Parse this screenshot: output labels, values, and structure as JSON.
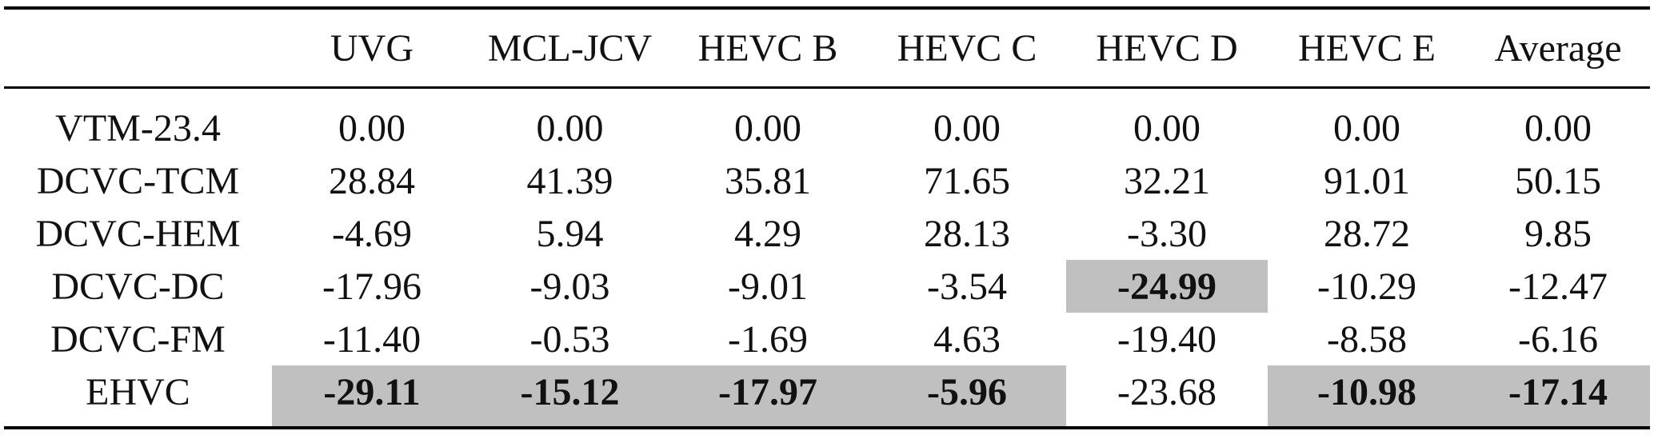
{
  "columns": [
    "UVG",
    "MCL-JCV",
    "HEVC B",
    "HEVC C",
    "HEVC D",
    "HEVC E",
    "Average"
  ],
  "rows": [
    {
      "model": "VTM-23.4",
      "values": [
        "0.00",
        "0.00",
        "0.00",
        "0.00",
        "0.00",
        "0.00",
        "0.00"
      ],
      "best": []
    },
    {
      "model": "DCVC-TCM",
      "values": [
        "28.84",
        "41.39",
        "35.81",
        "71.65",
        "32.21",
        "91.01",
        "50.15"
      ],
      "best": []
    },
    {
      "model": "DCVC-HEM",
      "values": [
        "-4.69",
        "5.94",
        "4.29",
        "28.13",
        "-3.30",
        "28.72",
        "9.85"
      ],
      "best": []
    },
    {
      "model": "DCVC-DC",
      "values": [
        "-17.96",
        "-9.03",
        "-9.01",
        "-3.54",
        "-24.99",
        "-10.29",
        "-12.47"
      ],
      "best": [
        4
      ]
    },
    {
      "model": "DCVC-FM",
      "values": [
        "-11.40",
        "-0.53",
        "-1.69",
        "4.63",
        "-19.40",
        "-8.58",
        "-6.16"
      ],
      "best": []
    },
    {
      "model": "EHVC",
      "values": [
        "-29.11",
        "-15.12",
        "-17.97",
        "-5.96",
        "-23.68",
        "-10.98",
        "-17.14"
      ],
      "best": [
        0,
        1,
        2,
        3,
        5,
        6
      ]
    }
  ],
  "colors": {
    "highlight": "#c0c0c0",
    "rule": "#000000",
    "text": "#111111"
  }
}
